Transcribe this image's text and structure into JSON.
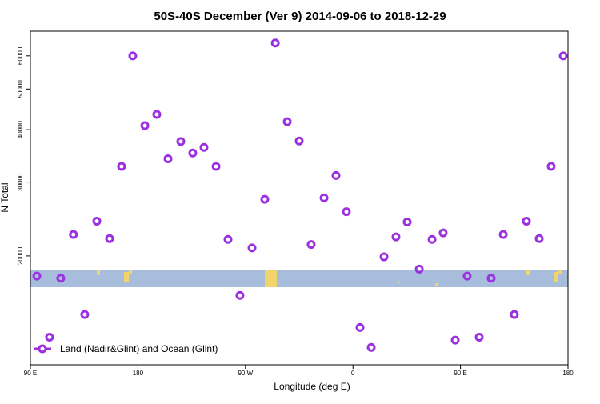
{
  "chart_data": {
    "type": "scatter",
    "title": "50S-40S December (Ver 9)   2014-09-06 to 2018-12-29",
    "x_label": "Longitude (deg E)",
    "y_label": "N Total",
    "xlim": [
      90,
      540
    ],
    "xticks": [
      {
        "value": 90,
        "label": "90 E"
      },
      {
        "value": 180,
        "label": "180"
      },
      {
        "value": 270,
        "label": "90 W"
      },
      {
        "value": 360,
        "label": "0"
      },
      {
        "value": 450,
        "label": "90 E"
      },
      {
        "value": 540,
        "label": "180"
      }
    ],
    "ylim": [
      11000,
      68700
    ],
    "yticks": [
      20000,
      30000,
      40000,
      50000,
      60000
    ],
    "y_log": true,
    "series": [
      {
        "name": "Land (Nadir&Glint) and Ocean (Glint)",
        "color": "#9b30e0",
        "x": [
          95.4,
          106,
          115.4,
          126,
          135.5,
          145.6,
          156.3,
          166.3,
          175.7,
          185.8,
          195.8,
          205.2,
          215.9,
          225.9,
          235.3,
          245.4,
          255.4,
          265.4,
          275.5,
          286.2,
          295,
          305,
          315,
          325,
          335.8,
          345.8,
          354.5,
          365.9,
          375.3,
          386,
          396,
          405.4,
          415.5,
          426.2,
          435.5,
          445.6,
          455.6,
          465.7,
          475.7,
          485.8,
          495.1,
          505.2,
          515.9,
          525.9,
          536
        ],
        "values": [
          17900,
          12800,
          17700,
          22500,
          14500,
          24200,
          22000,
          32700,
          60000,
          40900,
          43500,
          34100,
          37500,
          35200,
          36300,
          32700,
          21900,
          16100,
          20900,
          27300,
          64400,
          41800,
          37600,
          21300,
          27500,
          31100,
          25500,
          13500,
          12100,
          19900,
          22200,
          24100,
          18600,
          21900,
          22700,
          12600,
          17900,
          12800,
          17700,
          22500,
          14500,
          24200,
          22000,
          32700,
          60000
        ]
      }
    ],
    "legend": "bottom-left"
  }
}
